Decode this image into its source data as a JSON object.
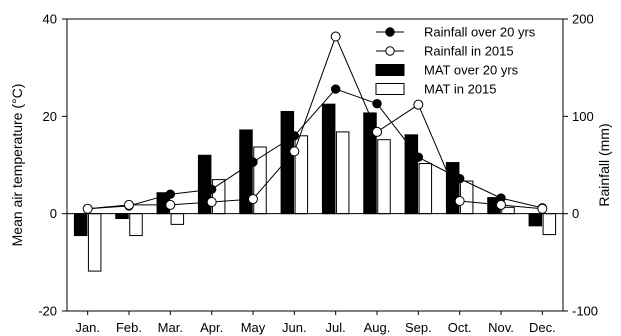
{
  "chart_data": {
    "type": "bar+line",
    "categories": [
      "Jan.",
      "Feb.",
      "Mar.",
      "Apr.",
      "May",
      "Jun.",
      "Jul.",
      "Aug.",
      "Sep.",
      "Oct.",
      "Nov.",
      "Dec."
    ],
    "ylabel_left": "Mean air temperature (°C)",
    "ylabel_right": "Rainfall (mm)",
    "ylim_left": [
      -20,
      40
    ],
    "yticks_left": [
      -20,
      0,
      20,
      40
    ],
    "ylim_right": [
      -100,
      200
    ],
    "yticks_right": [
      -100,
      0,
      100,
      200
    ],
    "grid": false,
    "legend_position": "top-right",
    "series": [
      {
        "name": "Rainfall over 20 yrs",
        "kind": "line",
        "marker": "filled-circle",
        "axis": "right",
        "color": "#000000",
        "values": [
          5,
          8,
          20,
          25,
          53,
          80,
          128,
          113,
          58,
          36,
          16,
          6
        ]
      },
      {
        "name": "Rainfall in 2015",
        "kind": "line",
        "marker": "open-circle",
        "axis": "right",
        "color": "#000000",
        "values": [
          5,
          9,
          9,
          12,
          15,
          64,
          182,
          84,
          112,
          13,
          9,
          5
        ]
      },
      {
        "name": "MAT over 20 yrs",
        "kind": "bar",
        "fill": "#000000",
        "axis": "left",
        "values": [
          -4.5,
          -1.0,
          4.3,
          12.0,
          17.2,
          21.0,
          22.5,
          20.7,
          16.2,
          10.5,
          3.3,
          -2.5
        ]
      },
      {
        "name": "MAT in 2015",
        "kind": "bar",
        "fill": "#ffffff",
        "axis": "left",
        "values": [
          -11.8,
          -4.5,
          -2.2,
          7.0,
          13.7,
          16.0,
          16.8,
          15.2,
          10.3,
          6.7,
          1.3,
          -4.3
        ]
      }
    ]
  }
}
